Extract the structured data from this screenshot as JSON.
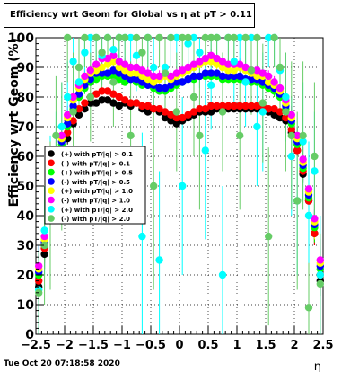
{
  "title": "Efficiency wrt Geom for Global vs   η at pT > 0.11",
  "timestamp": "Tue Oct 20 07:18:58 2020",
  "chart_data": {
    "type": "scatter",
    "xlabel": "η",
    "ylabel": "Efficiency wrt Geom (%)",
    "xlim": [
      -2.5,
      2.5
    ],
    "ylim": [
      0,
      100
    ],
    "x_ticks": [
      "−2.5",
      "−2",
      "−1.5",
      "−1",
      "−0.5",
      "0",
      "0.5",
      "1",
      "1.5",
      "2",
      "2.5"
    ],
    "y_ticks": [
      "0",
      "10",
      "20",
      "30",
      "40",
      "50",
      "60",
      "70",
      "80",
      "90",
      "100"
    ],
    "grid": true,
    "legend_position": "left-middle",
    "series": [
      {
        "name": "(+) with pT/|q| > 0.1",
        "color": "#000000",
        "x": [
          -2.45,
          -2.35,
          -2.25,
          -2.15,
          -2.05,
          -1.95,
          -1.85,
          -1.75,
          -1.65,
          -1.55,
          -1.45,
          -1.35,
          -1.25,
          -1.15,
          -1.05,
          -0.95,
          -0.85,
          -0.75,
          -0.65,
          -0.55,
          -0.45,
          -0.35,
          -0.25,
          -0.15,
          -0.05,
          0.05,
          0.15,
          0.25,
          0.35,
          0.45,
          0.55,
          0.65,
          0.75,
          0.85,
          0.95,
          1.05,
          1.15,
          1.25,
          1.35,
          1.45,
          1.55,
          1.65,
          1.75,
          1.85,
          1.95,
          2.05,
          2.15,
          2.25,
          2.35,
          2.45
        ],
        "y": [
          16,
          27,
          41,
          52,
          61,
          66,
          71,
          74,
          76,
          78,
          78,
          79,
          79,
          78,
          77,
          78,
          77,
          78,
          76,
          75,
          76,
          75,
          73,
          72,
          71,
          72,
          73,
          74,
          75,
          75,
          75,
          76,
          76,
          76,
          76,
          76,
          76,
          76,
          76,
          76,
          75,
          74,
          73,
          72,
          68,
          62,
          54,
          45,
          34,
          18
        ],
        "err": [
          5,
          5,
          4,
          3,
          2,
          2,
          2,
          1,
          1,
          1,
          1,
          1,
          1,
          1,
          1,
          1,
          1,
          1,
          1,
          1,
          1,
          1,
          1,
          1,
          1,
          1,
          1,
          1,
          1,
          1,
          1,
          1,
          1,
          1,
          1,
          1,
          1,
          1,
          1,
          1,
          1,
          1,
          1,
          1,
          2,
          2,
          3,
          3,
          4,
          5
        ]
      },
      {
        "name": "(-) with pT/|q| > 0.1",
        "color": "#ff0000",
        "x": [
          -2.45,
          -2.35,
          -2.25,
          -2.15,
          -2.05,
          -1.95,
          -1.85,
          -1.75,
          -1.65,
          -1.55,
          -1.45,
          -1.35,
          -1.25,
          -1.15,
          -1.05,
          -0.95,
          -0.85,
          -0.75,
          -0.65,
          -0.55,
          -0.45,
          -0.35,
          -0.25,
          -0.15,
          -0.05,
          0.05,
          0.15,
          0.25,
          0.35,
          0.45,
          0.55,
          0.65,
          0.75,
          0.85,
          0.95,
          1.05,
          1.15,
          1.25,
          1.35,
          1.45,
          1.55,
          1.65,
          1.75,
          1.85,
          1.95,
          2.05,
          2.15,
          2.25,
          2.35,
          2.45
        ],
        "y": [
          18,
          29,
          43,
          54,
          62,
          68,
          72,
          76,
          78,
          80,
          81,
          82,
          82,
          81,
          80,
          79,
          78,
          78,
          77,
          77,
          76,
          76,
          75,
          74,
          73,
          73,
          74,
          75,
          76,
          76,
          77,
          77,
          77,
          77,
          77,
          77,
          77,
          77,
          77,
          77,
          76,
          76,
          75,
          73,
          69,
          62,
          55,
          45,
          34,
          20
        ],
        "err": [
          5,
          5,
          4,
          3,
          2,
          2,
          2,
          1,
          1,
          1,
          1,
          1,
          1,
          1,
          1,
          1,
          1,
          1,
          1,
          1,
          1,
          1,
          1,
          1,
          1,
          1,
          1,
          1,
          1,
          1,
          1,
          1,
          1,
          1,
          1,
          1,
          1,
          1,
          1,
          1,
          1,
          1,
          1,
          1,
          2,
          2,
          3,
          3,
          4,
          5
        ]
      },
      {
        "name": "(+) with pT/|q| > 0.5",
        "color": "#00ff00",
        "x": [
          -2.45,
          -2.35,
          -2.25,
          -2.15,
          -2.05,
          -1.95,
          -1.85,
          -1.75,
          -1.65,
          -1.55,
          -1.45,
          -1.35,
          -1.25,
          -1.15,
          -1.05,
          -0.95,
          -0.85,
          -0.75,
          -0.65,
          -0.55,
          -0.45,
          -0.35,
          -0.25,
          -0.15,
          -0.05,
          0.05,
          0.15,
          0.25,
          0.35,
          0.45,
          0.55,
          0.65,
          0.75,
          0.85,
          0.95,
          1.05,
          1.15,
          1.25,
          1.35,
          1.45,
          1.55,
          1.65,
          1.75,
          1.85,
          1.95,
          2.05,
          2.15,
          2.25,
          2.35,
          2.45
        ],
        "y": [
          20,
          30,
          46,
          56,
          64,
          70,
          76,
          80,
          83,
          85,
          86,
          87,
          87,
          87,
          86,
          85,
          86,
          85,
          84,
          84,
          83,
          82,
          82,
          83,
          84,
          85,
          86,
          86,
          87,
          87,
          87,
          87,
          86,
          86,
          86,
          86,
          86,
          85,
          85,
          84,
          83,
          82,
          80,
          76,
          71,
          64,
          56,
          46,
          36,
          22
        ],
        "err": [
          6,
          5,
          4,
          3,
          3,
          2,
          2,
          2,
          2,
          1,
          1,
          1,
          1,
          1,
          1,
          1,
          1,
          1,
          1,
          1,
          1,
          1,
          1,
          1,
          1,
          1,
          1,
          1,
          1,
          1,
          1,
          1,
          1,
          1,
          1,
          1,
          1,
          1,
          1,
          1,
          1,
          2,
          2,
          2,
          2,
          3,
          3,
          4,
          5,
          6
        ]
      },
      {
        "name": "(-) with pT/|q| > 0.5",
        "color": "#0000ff",
        "x": [
          -2.45,
          -2.35,
          -2.25,
          -2.15,
          -2.05,
          -1.95,
          -1.85,
          -1.75,
          -1.65,
          -1.55,
          -1.45,
          -1.35,
          -1.25,
          -1.15,
          -1.05,
          -0.95,
          -0.85,
          -0.75,
          -0.65,
          -0.55,
          -0.45,
          -0.35,
          -0.25,
          -0.15,
          -0.05,
          0.05,
          0.15,
          0.25,
          0.35,
          0.45,
          0.55,
          0.65,
          0.75,
          0.85,
          0.95,
          1.05,
          1.15,
          1.25,
          1.35,
          1.45,
          1.55,
          1.65,
          1.75,
          1.85,
          1.95,
          2.05,
          2.15,
          2.25,
          2.35,
          2.45
        ],
        "y": [
          21,
          31,
          45,
          57,
          65,
          71,
          77,
          81,
          84,
          86,
          88,
          88,
          88,
          89,
          88,
          87,
          86,
          86,
          85,
          84,
          84,
          83,
          83,
          84,
          85,
          85,
          86,
          87,
          87,
          88,
          88,
          88,
          87,
          87,
          87,
          87,
          86,
          86,
          86,
          85,
          84,
          83,
          81,
          77,
          72,
          65,
          57,
          47,
          37,
          23
        ],
        "err": [
          6,
          5,
          4,
          3,
          3,
          2,
          2,
          2,
          2,
          1,
          1,
          1,
          1,
          1,
          1,
          1,
          1,
          1,
          1,
          1,
          1,
          1,
          1,
          1,
          1,
          1,
          1,
          1,
          1,
          1,
          1,
          1,
          1,
          1,
          1,
          1,
          1,
          1,
          1,
          1,
          1,
          2,
          2,
          2,
          2,
          3,
          3,
          4,
          5,
          6
        ]
      },
      {
        "name": "(+) with pT/|q| > 1.0",
        "color": "#ffff00",
        "x": [
          -2.45,
          -2.35,
          -2.25,
          -2.15,
          -2.05,
          -1.95,
          -1.85,
          -1.75,
          -1.65,
          -1.55,
          -1.45,
          -1.35,
          -1.25,
          -1.15,
          -1.05,
          -0.95,
          -0.85,
          -0.75,
          -0.65,
          -0.55,
          -0.45,
          -0.35,
          -0.25,
          -0.15,
          -0.05,
          0.05,
          0.15,
          0.25,
          0.35,
          0.45,
          0.55,
          0.65,
          0.75,
          0.85,
          0.95,
          1.05,
          1.15,
          1.25,
          1.35,
          1.45,
          1.55,
          1.65,
          1.75,
          1.85,
          1.95,
          2.05,
          2.15,
          2.25,
          2.35,
          2.45
        ],
        "y": [
          22,
          32,
          47,
          58,
          66,
          73,
          79,
          83,
          86,
          88,
          89,
          90,
          91,
          92,
          90,
          89,
          88,
          88,
          87,
          86,
          85,
          86,
          87,
          86,
          87,
          88,
          89,
          90,
          91,
          92,
          92,
          91,
          90,
          89,
          89,
          90,
          89,
          88,
          87,
          87,
          85,
          84,
          82,
          78,
          73,
          66,
          58,
          48,
          38,
          24
        ],
        "err": [
          7,
          6,
          5,
          4,
          3,
          3,
          2,
          2,
          2,
          2,
          2,
          2,
          2,
          2,
          2,
          2,
          2,
          2,
          2,
          2,
          2,
          2,
          2,
          2,
          2,
          2,
          2,
          2,
          2,
          2,
          2,
          2,
          2,
          2,
          2,
          2,
          2,
          2,
          2,
          2,
          2,
          2,
          2,
          2,
          3,
          3,
          4,
          5,
          6,
          7
        ]
      },
      {
        "name": "(-) with pT/|q| > 1.0",
        "color": "#ff00ff",
        "x": [
          -2.45,
          -2.35,
          -2.25,
          -2.15,
          -2.05,
          -1.95,
          -1.85,
          -1.75,
          -1.65,
          -1.55,
          -1.45,
          -1.35,
          -1.25,
          -1.15,
          -1.05,
          -0.95,
          -0.85,
          -0.75,
          -0.65,
          -0.55,
          -0.45,
          -0.35,
          -0.25,
          -0.15,
          -0.05,
          0.05,
          0.15,
          0.25,
          0.35,
          0.45,
          0.55,
          0.65,
          0.75,
          0.85,
          0.95,
          1.05,
          1.15,
          1.25,
          1.35,
          1.45,
          1.55,
          1.65,
          1.75,
          1.85,
          1.95,
          2.05,
          2.15,
          2.25,
          2.35,
          2.45
        ],
        "y": [
          23,
          33,
          48,
          59,
          67,
          74,
          80,
          84,
          87,
          89,
          91,
          93,
          93,
          94,
          92,
          91,
          90,
          90,
          89,
          88,
          87,
          87,
          88,
          87,
          88,
          89,
          90,
          91,
          92,
          93,
          94,
          93,
          92,
          91,
          91,
          91,
          90,
          89,
          89,
          88,
          87,
          85,
          83,
          79,
          74,
          67,
          59,
          49,
          39,
          25
        ],
        "err": [
          7,
          6,
          5,
          4,
          3,
          3,
          2,
          2,
          2,
          2,
          2,
          2,
          2,
          2,
          2,
          2,
          2,
          2,
          2,
          2,
          2,
          2,
          2,
          2,
          2,
          2,
          2,
          2,
          2,
          2,
          2,
          2,
          2,
          2,
          2,
          2,
          2,
          2,
          2,
          2,
          2,
          2,
          2,
          2,
          3,
          3,
          4,
          5,
          6,
          7
        ]
      },
      {
        "name": "(+) with pT/|q| > 2.0",
        "color": "#00ffff",
        "x": [
          -2.45,
          -2.35,
          -2.25,
          -2.15,
          -2.05,
          -1.95,
          -1.85,
          -1.75,
          -1.65,
          -1.55,
          -1.45,
          -1.35,
          -1.25,
          -1.15,
          -1.05,
          -0.95,
          -0.85,
          -0.75,
          -0.65,
          -0.55,
          -0.45,
          -0.35,
          -0.25,
          -0.15,
          -0.05,
          0.05,
          0.15,
          0.25,
          0.35,
          0.45,
          0.55,
          0.65,
          0.75,
          0.85,
          0.95,
          1.05,
          1.15,
          1.25,
          1.35,
          1.45,
          1.55,
          1.65,
          1.75,
          1.85,
          1.95,
          2.05,
          2.15,
          2.25,
          2.35,
          2.45
        ],
        "y": [
          15,
          35,
          52,
          60,
          70,
          80,
          92,
          85,
          95,
          100,
          100,
          94,
          100,
          96,
          100,
          100,
          100,
          94,
          33,
          100,
          90,
          25,
          90,
          100,
          100,
          50,
          98,
          100,
          95,
          62,
          84,
          100,
          20,
          100,
          92,
          100,
          85,
          100,
          70,
          75,
          100,
          100,
          89,
          80,
          60,
          45,
          65,
          40,
          55,
          20
        ],
        "err": [
          15,
          15,
          15,
          15,
          15,
          12,
          10,
          12,
          10,
          8,
          8,
          10,
          8,
          10,
          8,
          10,
          8,
          12,
          35,
          10,
          15,
          30,
          15,
          10,
          10,
          30,
          12,
          10,
          12,
          30,
          15,
          10,
          30,
          10,
          15,
          10,
          15,
          10,
          20,
          20,
          10,
          10,
          15,
          15,
          20,
          25,
          20,
          25,
          20,
          20
        ]
      },
      {
        "name": "(-) with pT/|q| > 2.0",
        "color": "#66cc66",
        "x": [
          -2.45,
          -2.35,
          -2.25,
          -2.15,
          -2.05,
          -1.95,
          -1.85,
          -1.75,
          -1.65,
          -1.55,
          -1.45,
          -1.35,
          -1.25,
          -1.15,
          -1.05,
          -0.95,
          -0.85,
          -0.75,
          -0.65,
          -0.55,
          -0.45,
          -0.35,
          -0.25,
          -0.15,
          -0.05,
          0.05,
          0.15,
          0.25,
          0.35,
          0.45,
          0.55,
          0.65,
          0.75,
          0.85,
          0.95,
          1.05,
          1.15,
          1.25,
          1.35,
          1.45,
          1.55,
          1.65,
          1.75,
          1.85,
          1.95,
          2.05,
          2.15,
          2.25,
          2.35,
          2.45
        ],
        "y": [
          14,
          30,
          40,
          67,
          60,
          100,
          75,
          90,
          100,
          80,
          100,
          95,
          100,
          85,
          100,
          100,
          67,
          100,
          95,
          100,
          50,
          100,
          88,
          100,
          75,
          100,
          100,
          80,
          67,
          100,
          100,
          100,
          75,
          100,
          100,
          67,
          100,
          89,
          100,
          78,
          33,
          100,
          90,
          75,
          67,
          45,
          67,
          9,
          60,
          17
        ],
        "err": [
          14,
          20,
          25,
          20,
          25,
          15,
          20,
          15,
          10,
          15,
          10,
          12,
          10,
          15,
          10,
          10,
          25,
          10,
          12,
          10,
          35,
          10,
          15,
          10,
          20,
          10,
          10,
          20,
          25,
          10,
          10,
          10,
          20,
          10,
          10,
          25,
          10,
          15,
          10,
          20,
          30,
          10,
          15,
          20,
          25,
          30,
          25,
          15,
          25,
          17
        ]
      }
    ]
  }
}
